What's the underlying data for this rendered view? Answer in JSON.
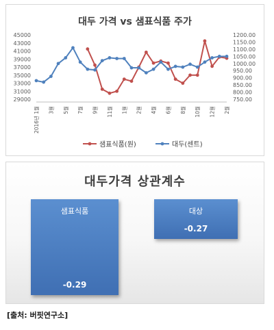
{
  "chart_data": [
    {
      "type": "line",
      "title": "대두 가격 vs 샘표식품 주가",
      "x_tick_labels": [
        "2016년 1월",
        "3월",
        "5월",
        "7월",
        "9월",
        "11월",
        "1월",
        "2월",
        "4월",
        "6월",
        "8월",
        "10월",
        "12월",
        "2월",
        "4월"
      ],
      "y_left_ticks": [
        "45000",
        "43000",
        "41000",
        "39000",
        "37000",
        "35000",
        "33000",
        "31000",
        "29000"
      ],
      "y_right_ticks": [
        "1200.00",
        "1150.00",
        "1100.00",
        "1050.00",
        "1000.00",
        "950.00",
        "900.00",
        "850.00",
        "800.00",
        "750.00"
      ],
      "y_left_range": [
        29000,
        45000
      ],
      "y_right_range": [
        750,
        1200
      ],
      "grid": false,
      "legend_position": "bottom",
      "series": [
        {
          "name": "샘표식품(원)",
          "axis": "left",
          "color": "#c0504d",
          "values": [
            null,
            null,
            null,
            null,
            null,
            null,
            null,
            41500,
            37500,
            31500,
            30500,
            31000,
            34000,
            33500,
            37000,
            40700,
            38000,
            38500,
            38000,
            34000,
            33000,
            35000,
            35000,
            43500,
            37200,
            39500,
            39200
          ]
        },
        {
          "name": "대두(센트)",
          "axis": "right",
          "color": "#4f81bd",
          "values": [
            880,
            870,
            910,
            1000,
            1040,
            1110,
            1010,
            960,
            955,
            1020,
            1040,
            1035,
            1035,
            970,
            970,
            935,
            960,
            1010,
            960,
            980,
            975,
            995,
            975,
            1010,
            1040,
            1050,
            1050
          ]
        }
      ]
    },
    {
      "type": "bar",
      "title": "대두가격 상관계수",
      "categories": [
        "샘표식품",
        "대상"
      ],
      "values": [
        -0.29,
        -0.27
      ],
      "value_labels": [
        "-0.29",
        "-0.27"
      ],
      "color": "#4f81bd"
    }
  ],
  "source": "[출처: 버핏연구소]"
}
